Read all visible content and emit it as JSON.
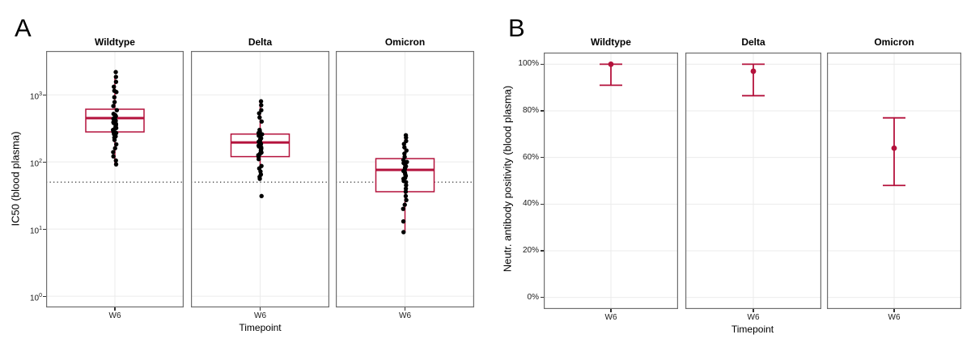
{
  "figure": {
    "background": "#ffffff",
    "accent_color": "#B4123C",
    "point_color": "#000000",
    "grid_color": "#EBEBEB",
    "border_color": "#6E6E6E",
    "tick_color": "#333333"
  },
  "chart_data": [
    {
      "panel_label": "A",
      "type": "boxplot-jitter",
      "title": "",
      "ylabel": "IC50 (blood plasma)",
      "xlabel": "Timepoint",
      "x_tick_label": "W6",
      "yscale": "log10",
      "ylim": [
        0.68,
        4500
      ],
      "grid": true,
      "hline_dotted": 50,
      "yticks": [
        {
          "value": 1,
          "exp": "0"
        },
        {
          "value": 10,
          "exp": "1"
        },
        {
          "value": 100,
          "exp": "2"
        },
        {
          "value": 1000,
          "exp": "3"
        }
      ],
      "facets": [
        {
          "name": "Wildtype",
          "box": {
            "whisker_low": 90,
            "q1": 280,
            "median": 450,
            "q3": 610,
            "whisker_high": 1850
          },
          "points": [
            2180,
            1850,
            1560,
            1320,
            1150,
            1100,
            920,
            780,
            680,
            590,
            520,
            500,
            480,
            465,
            450,
            440,
            430,
            420,
            410,
            400,
            390,
            380,
            370,
            360,
            350,
            340,
            330,
            320,
            310,
            300,
            290,
            280,
            270,
            260,
            250,
            240,
            230,
            212,
            183,
            160,
            140,
            121,
            105,
            92
          ]
        },
        {
          "name": "Delta",
          "box": {
            "whisker_low": 56,
            "q1": 120,
            "median": 195,
            "q3": 260,
            "whisker_high": 800
          },
          "points": [
            800,
            700,
            590,
            530,
            460,
            400,
            300,
            285,
            270,
            258,
            246,
            235,
            225,
            216,
            208,
            200,
            195,
            190,
            185,
            180,
            175,
            170,
            165,
            160,
            155,
            150,
            144,
            138,
            132,
            126,
            120,
            110,
            87,
            80,
            72,
            65,
            60,
            56,
            31
          ]
        },
        {
          "name": "Omicron",
          "box": {
            "whisker_low": 9,
            "q1": 36,
            "median": 76,
            "q3": 112,
            "whisker_high": 250
          },
          "points": [
            250,
            230,
            205,
            185,
            165,
            148,
            133,
            119,
            107,
            100,
            96,
            90,
            86,
            82,
            77,
            73,
            69,
            65,
            62,
            58,
            56,
            52,
            50,
            45,
            40,
            36,
            31,
            27,
            23,
            20,
            13,
            9
          ]
        }
      ]
    },
    {
      "panel_label": "B",
      "type": "pointrange",
      "title": "",
      "ylabel": "Neutr. antibody positivity (blood plasma)",
      "xlabel": "Timepoint",
      "x_tick_label": "W6",
      "yscale": "linear",
      "ylim": [
        -5,
        105
      ],
      "grid": true,
      "yticks": [
        {
          "value": 100,
          "label": "100%"
        },
        {
          "value": 80,
          "label": "80%"
        },
        {
          "value": 60,
          "label": "60%"
        },
        {
          "value": 40,
          "label": "40%"
        },
        {
          "value": 20,
          "label": "20%"
        },
        {
          "value": 0,
          "label": "0%"
        }
      ],
      "facets": [
        {
          "name": "Wildtype",
          "estimate": 100,
          "ci_low": 91,
          "ci_high": 100
        },
        {
          "name": "Delta",
          "estimate": 97,
          "ci_low": 86.5,
          "ci_high": 100
        },
        {
          "name": "Omicron",
          "estimate": 64,
          "ci_low": 48,
          "ci_high": 77
        }
      ]
    }
  ]
}
